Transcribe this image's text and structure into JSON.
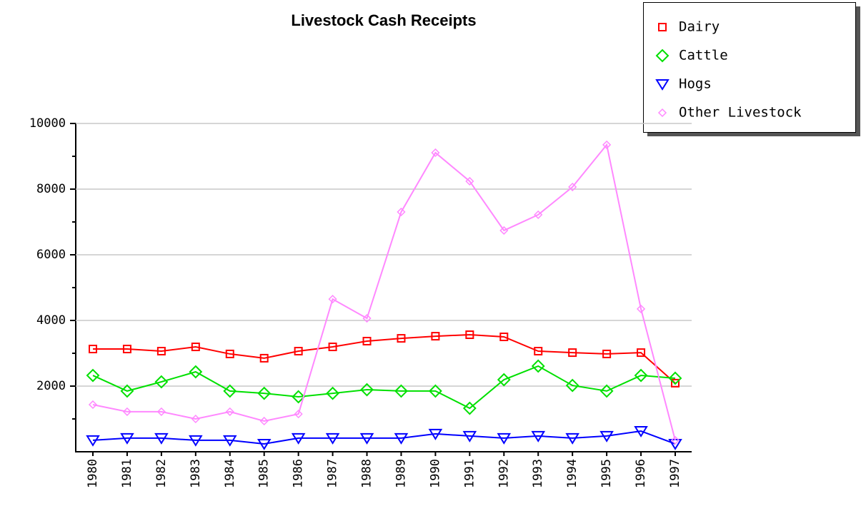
{
  "chart_data": {
    "type": "line",
    "title": "Livestock Cash Receipts",
    "categories": [
      "1980",
      "1981",
      "1982",
      "1983",
      "1984",
      "1985",
      "1986",
      "1987",
      "1988",
      "1989",
      "1990",
      "1991",
      "1992",
      "1993",
      "1994",
      "1995",
      "1996",
      "1997"
    ],
    "series": [
      {
        "name": "Dairy",
        "color": "#ff0000",
        "marker": "square",
        "values": [
          3130,
          3130,
          3065,
          3195,
          2980,
          2850,
          3065,
          3195,
          3370,
          3455,
          3520,
          3565,
          3500,
          3065,
          3020,
          2980,
          3020,
          2090
        ]
      },
      {
        "name": "Cattle",
        "color": "#00e000",
        "marker": "diamond",
        "values": [
          2325,
          1850,
          2130,
          2435,
          1850,
          1780,
          1675,
          1780,
          1890,
          1850,
          1850,
          1325,
          2195,
          2610,
          2020,
          1850,
          2325,
          2240
        ]
      },
      {
        "name": "Hogs",
        "color": "#0000ff",
        "marker": "triangle-down",
        "values": [
          350,
          415,
          415,
          350,
          350,
          240,
          415,
          415,
          415,
          415,
          545,
          480,
          415,
          480,
          415,
          480,
          630,
          240
        ]
      },
      {
        "name": "Other Livestock",
        "color": "#ff88ff",
        "marker": "small-diamond",
        "values": [
          1435,
          1220,
          1220,
          1000,
          1220,
          935,
          1150,
          4650,
          4065,
          7305,
          9110,
          8240,
          6740,
          7220,
          8065,
          9350,
          4350,
          350
        ]
      }
    ],
    "ylim": [
      0,
      10000
    ],
    "yticks": [
      2000,
      4000,
      6000,
      8000,
      10000
    ],
    "y_minor_ticks": [
      1000,
      3000,
      5000,
      7000,
      9000
    ],
    "grid": true,
    "legend": "top-right"
  }
}
